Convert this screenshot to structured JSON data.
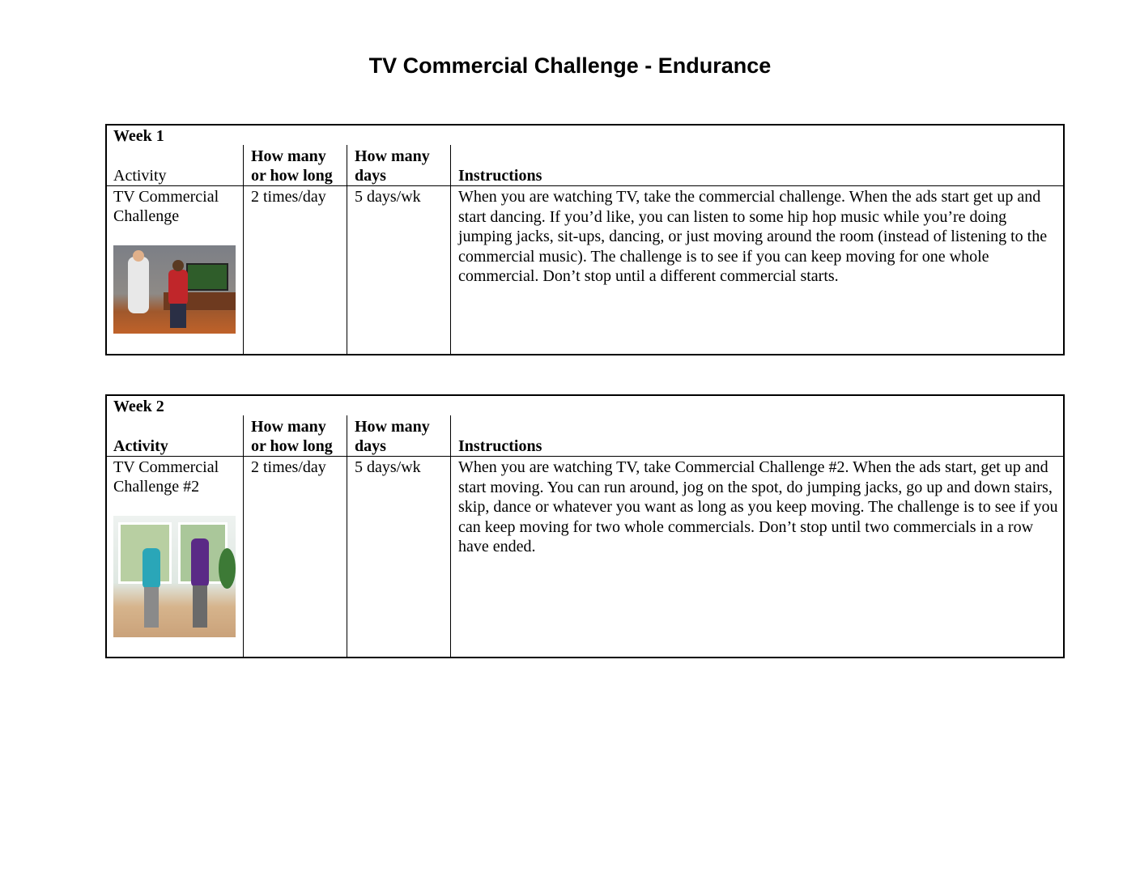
{
  "title": "TV Commercial Challenge - Endurance",
  "weeks": [
    {
      "label": "Week 1",
      "headers": {
        "activity": "Activity",
        "how_many_1": "How many",
        "how_many_2": "or how long",
        "days_1": "How many",
        "days_2": "days",
        "instructions": "Instructions"
      },
      "row": {
        "activity_1": "TV Commercial",
        "activity_2": "Challenge",
        "how_many": "2 times/day",
        "days": "5 days/wk",
        "instructions": "When you are watching TV, take the commercial challenge. When the ads start get up and start dancing. If you’d like, you can listen to some hip hop music while you’re doing jumping jacks, sit-ups, dancing, or just moving around the room (instead of listening to the commercial music). The challenge is to see if you can keep moving for one whole commercial. Don’t stop until a different commercial starts."
      }
    },
    {
      "label": "Week 2",
      "headers": {
        "activity": "Activity",
        "how_many_1": "How many",
        "how_many_2": "or how long",
        "days_1": "How many",
        "days_2": "days",
        "instructions": "Instructions"
      },
      "row": {
        "activity_1": "TV Commercial",
        "activity_2": "Challenge #2",
        "how_many": "2 times/day",
        "days": "5 days/wk",
        "instructions": "When you are watching TV, take Commercial Challenge #2. When the ads start, get up and start moving. You can run around, jog on the spot, do jumping jacks, go up and down stairs, skip, dance or whatever you want as long as you keep moving. The challenge is to see if you can keep moving for two whole commercials. Don’t stop until two commercials in a row have ended."
      }
    }
  ]
}
